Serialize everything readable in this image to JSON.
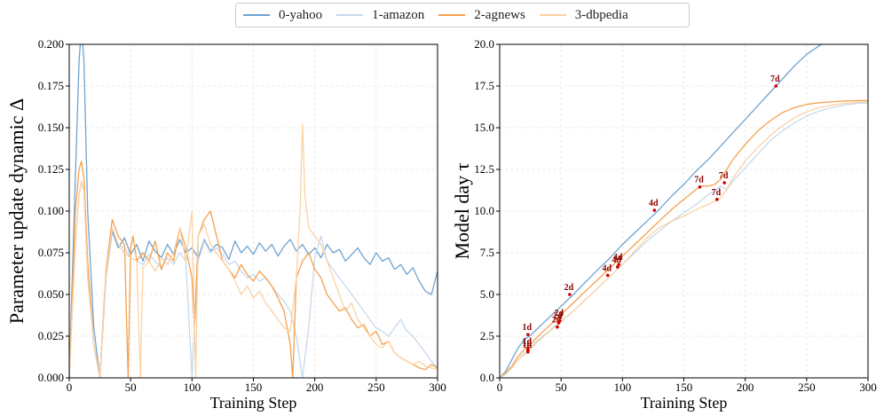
{
  "legend": [
    {
      "name": "0-yahoo",
      "color": "#6fa3cf"
    },
    {
      "name": "1-amazon",
      "color": "#c6d9ec"
    },
    {
      "name": "2-agnews",
      "color": "#f5a04e"
    },
    {
      "name": "3-dbpedia",
      "color": "#fbd2a4"
    }
  ],
  "chart_data": [
    {
      "type": "line",
      "title": "",
      "xlabel": "Training Step",
      "ylabel": "Parameter update dynamic Δ",
      "xlim": [
        0,
        300
      ],
      "ylim": [
        0,
        0.2
      ],
      "xticks": [
        0,
        50,
        100,
        150,
        200,
        250,
        300
      ],
      "xtick_labels": [
        "0",
        "50",
        "100",
        "150",
        "200",
        "250",
        "300"
      ],
      "yticks": [
        0,
        0.025,
        0.05,
        0.075,
        0.1,
        0.125,
        0.15,
        0.175,
        0.2
      ],
      "ytick_labels": [
        "0.000",
        "0.025",
        "0.050",
        "0.075",
        "0.100",
        "0.125",
        "0.150",
        "0.175",
        "0.200"
      ],
      "grid": true,
      "series": [
        {
          "name": "0-yahoo",
          "color": "#6fa3cf",
          "x": [
            0,
            5,
            8,
            10,
            12,
            15,
            20,
            25,
            28,
            30,
            35,
            40,
            45,
            50,
            55,
            60,
            65,
            70,
            75,
            80,
            85,
            90,
            95,
            100,
            105,
            110,
            115,
            120,
            125,
            130,
            135,
            140,
            145,
            150,
            155,
            160,
            165,
            170,
            175,
            180,
            185,
            190,
            195,
            200,
            205,
            210,
            215,
            220,
            225,
            230,
            235,
            240,
            245,
            250,
            255,
            260,
            265,
            270,
            275,
            280,
            285,
            290,
            295,
            300
          ],
          "y": [
            0,
            0.12,
            0.19,
            0.21,
            0.19,
            0.1,
            0.03,
            0,
            0.04,
            0.06,
            0.088,
            0.078,
            0.084,
            0.074,
            0.08,
            0.07,
            0.082,
            0.076,
            0.072,
            0.08,
            0.074,
            0.083,
            0.075,
            0.078,
            0.072,
            0.083,
            0.076,
            0.08,
            0.078,
            0.071,
            0.082,
            0.075,
            0.079,
            0.074,
            0.081,
            0.076,
            0.08,
            0.073,
            0.079,
            0.083,
            0.076,
            0.08,
            0.074,
            0.078,
            0.072,
            0.08,
            0.075,
            0.077,
            0.07,
            0.074,
            0.078,
            0.072,
            0.068,
            0.075,
            0.07,
            0.072,
            0.065,
            0.068,
            0.062,
            0.066,
            0.058,
            0.052,
            0.05,
            0.064
          ]
        },
        {
          "name": "1-amazon",
          "color": "#c6d9ec",
          "x": [
            0,
            5,
            8,
            10,
            12,
            15,
            20,
            25,
            28,
            30,
            35,
            40,
            45,
            50,
            55,
            60,
            65,
            70,
            75,
            80,
            85,
            90,
            95,
            100,
            105,
            110,
            115,
            120,
            125,
            130,
            135,
            140,
            145,
            150,
            155,
            160,
            165,
            170,
            175,
            180,
            185,
            190,
            195,
            200,
            205,
            210,
            215,
            220,
            225,
            230,
            235,
            240,
            245,
            250,
            255,
            260,
            265,
            270,
            275,
            280,
            285,
            290,
            295,
            300
          ],
          "y": [
            0,
            0.08,
            0.11,
            0.118,
            0.112,
            0.06,
            0.02,
            0,
            0.035,
            0.06,
            0.09,
            0.08,
            0.078,
            0.072,
            0.07,
            0.068,
            0.074,
            0.07,
            0.066,
            0.072,
            0.068,
            0.075,
            0.07,
            0,
            0.07,
            0.082,
            0.075,
            0.078,
            0.074,
            0.068,
            0.07,
            0.064,
            0.06,
            0.062,
            0.058,
            0.06,
            0.055,
            0.05,
            0.046,
            0.04,
            0.025,
            0,
            0.03,
            0.072,
            0.085,
            0.07,
            0.065,
            0.06,
            0.055,
            0.05,
            0.045,
            0.04,
            0.035,
            0.03,
            0.028,
            0.025,
            0.03,
            0.035,
            0.028,
            0.025,
            0.02,
            0.015,
            0.01,
            0.006
          ]
        },
        {
          "name": "2-agnews",
          "color": "#f5a04e",
          "x": [
            0,
            5,
            8,
            10,
            12,
            15,
            20,
            25,
            28,
            30,
            35,
            40,
            45,
            48,
            50,
            52,
            55,
            60,
            65,
            70,
            75,
            80,
            85,
            90,
            95,
            100,
            102,
            105,
            110,
            115,
            120,
            125,
            130,
            135,
            140,
            145,
            150,
            155,
            160,
            165,
            170,
            175,
            180,
            182,
            185,
            190,
            195,
            200,
            205,
            210,
            215,
            220,
            225,
            230,
            235,
            240,
            245,
            250,
            255,
            260,
            265,
            270,
            275,
            280,
            285,
            290,
            295,
            300
          ],
          "y": [
            0,
            0.1,
            0.125,
            0.13,
            0.12,
            0.07,
            0.02,
            0,
            0.04,
            0.065,
            0.095,
            0.085,
            0.08,
            0,
            0.078,
            0.085,
            0.07,
            0.075,
            0.07,
            0.082,
            0.065,
            0.075,
            0.07,
            0.09,
            0.078,
            0.06,
            0.03,
            0.085,
            0.095,
            0.1,
            0.085,
            0.07,
            0.065,
            0.06,
            0.068,
            0.062,
            0.058,
            0.064,
            0.06,
            0.055,
            0.048,
            0.04,
            0.02,
            0,
            0.06,
            0.07,
            0.075,
            0.065,
            0.06,
            0.05,
            0.045,
            0.04,
            0.042,
            0.035,
            0.03,
            0.032,
            0.025,
            0.028,
            0.02,
            0.022,
            0.015,
            0.012,
            0.01,
            0.008,
            0.006,
            0.005,
            0.008,
            0.006
          ]
        },
        {
          "name": "3-dbpedia",
          "color": "#fbd2a4",
          "x": [
            0,
            5,
            8,
            10,
            12,
            15,
            20,
            25,
            28,
            30,
            35,
            40,
            45,
            50,
            55,
            58,
            60,
            65,
            70,
            75,
            80,
            85,
            90,
            95,
            100,
            103,
            105,
            110,
            115,
            120,
            125,
            130,
            135,
            140,
            145,
            150,
            155,
            160,
            165,
            170,
            175,
            180,
            185,
            188,
            190,
            192,
            195,
            200,
            205,
            210,
            215,
            220,
            225,
            230,
            235,
            240,
            245,
            250,
            255,
            260,
            265,
            270,
            275,
            280,
            285,
            290,
            295,
            300
          ],
          "y": [
            0,
            0.08,
            0.11,
            0.118,
            0.112,
            0.06,
            0.02,
            0,
            0.04,
            0.062,
            0.09,
            0.08,
            0.075,
            0.072,
            0.07,
            0,
            0.066,
            0.07,
            0.064,
            0.072,
            0.068,
            0.075,
            0.09,
            0.07,
            0.1,
            0,
            0.085,
            0.092,
            0.08,
            0.075,
            0.07,
            0.065,
            0.058,
            0.05,
            0.055,
            0.048,
            0.052,
            0.045,
            0.04,
            0.035,
            0.03,
            0.028,
            0.06,
            0.1,
            0.152,
            0.11,
            0.09,
            0.085,
            0.08,
            0.07,
            0.06,
            0.05,
            0.04,
            0.045,
            0.035,
            0.03,
            0.025,
            0.02,
            0.018,
            0.022,
            0.015,
            0.012,
            0.01,
            0.008,
            0.01,
            0.007,
            0.006,
            0.005
          ]
        }
      ]
    },
    {
      "type": "line",
      "title": "",
      "xlabel": "Training Step",
      "ylabel": "Model day τ",
      "xlim": [
        0,
        300
      ],
      "ylim": [
        0,
        20
      ],
      "xticks": [
        0,
        50,
        100,
        150,
        200,
        250,
        300
      ],
      "xtick_labels": [
        "0",
        "50",
        "100",
        "150",
        "200",
        "250",
        "300"
      ],
      "yticks": [
        0,
        2.5,
        5,
        7.5,
        10,
        12.5,
        15,
        17.5,
        20
      ],
      "ytick_labels": [
        "0.0",
        "2.5",
        "5.0",
        "7.5",
        "10.0",
        "12.5",
        "15.0",
        "17.5",
        "20.0"
      ],
      "grid": true,
      "series": [
        {
          "name": "0-yahoo",
          "color": "#6fa3cf",
          "x": [
            0,
            5,
            10,
            15,
            20,
            25,
            30,
            40,
            50,
            60,
            70,
            80,
            90,
            100,
            110,
            120,
            130,
            140,
            150,
            160,
            170,
            180,
            190,
            200,
            210,
            220,
            230,
            240,
            250,
            262
          ],
          "y": [
            0,
            0.4,
            1.1,
            1.8,
            2.3,
            2.55,
            2.9,
            3.6,
            4.3,
            5.0,
            5.75,
            6.5,
            7.2,
            8.0,
            8.7,
            9.4,
            10.1,
            10.9,
            11.6,
            12.4,
            13.1,
            13.9,
            14.7,
            15.5,
            16.3,
            17.1,
            17.9,
            18.7,
            19.4,
            20.0
          ]
        },
        {
          "name": "1-amazon",
          "color": "#c6d9ec",
          "x": [
            0,
            5,
            10,
            15,
            20,
            25,
            30,
            40,
            50,
            60,
            70,
            80,
            90,
            100,
            110,
            120,
            130,
            140,
            150,
            160,
            170,
            175,
            180,
            185,
            190,
            200,
            210,
            220,
            230,
            240,
            250,
            260,
            270,
            280,
            290,
            300
          ],
          "y": [
            0,
            0.2,
            0.6,
            1.1,
            1.5,
            1.8,
            2.2,
            2.8,
            3.4,
            4.0,
            4.7,
            5.4,
            6.1,
            6.8,
            7.5,
            8.2,
            8.8,
            9.4,
            9.9,
            10.4,
            11.0,
            11.2,
            11.5,
            11.3,
            11.8,
            12.6,
            13.4,
            14.2,
            14.8,
            15.3,
            15.7,
            16.0,
            16.2,
            16.35,
            16.45,
            16.5
          ]
        },
        {
          "name": "2-agnews",
          "color": "#f5a04e",
          "x": [
            0,
            5,
            10,
            15,
            20,
            25,
            30,
            40,
            50,
            60,
            70,
            80,
            90,
            100,
            110,
            120,
            130,
            140,
            150,
            160,
            165,
            170,
            175,
            180,
            185,
            190,
            200,
            210,
            220,
            230,
            240,
            250,
            260,
            270,
            280,
            290,
            300
          ],
          "y": [
            0,
            0.3,
            0.7,
            1.3,
            1.7,
            2.0,
            2.4,
            3.1,
            3.8,
            4.5,
            5.2,
            5.9,
            6.6,
            7.3,
            8.0,
            8.7,
            9.4,
            10.1,
            10.7,
            11.3,
            11.5,
            11.5,
            11.6,
            11.9,
            12.5,
            13.1,
            14.0,
            14.8,
            15.4,
            15.9,
            16.2,
            16.4,
            16.5,
            16.55,
            16.6,
            16.62,
            16.63
          ]
        },
        {
          "name": "3-dbpedia",
          "color": "#fbd2a4",
          "x": [
            0,
            5,
            10,
            15,
            20,
            25,
            30,
            40,
            50,
            60,
            70,
            80,
            90,
            100,
            110,
            120,
            130,
            140,
            150,
            160,
            170,
            180,
            185,
            190,
            200,
            210,
            220,
            230,
            240,
            250,
            260,
            270,
            280,
            290,
            300
          ],
          "y": [
            0,
            0.25,
            0.6,
            1.1,
            1.4,
            1.7,
            2.1,
            2.75,
            3.35,
            4.0,
            4.7,
            5.4,
            6.1,
            6.8,
            7.6,
            8.4,
            9.0,
            9.4,
            9.7,
            10.1,
            10.4,
            10.8,
            11.3,
            12.0,
            13.0,
            13.8,
            14.5,
            15.1,
            15.6,
            15.95,
            16.2,
            16.35,
            16.45,
            16.52,
            16.55
          ]
        }
      ],
      "annotations": [
        {
          "label": "1d",
          "x": 23,
          "y": 1.55
        },
        {
          "label": "1d",
          "x": 23,
          "y": 1.65
        },
        {
          "label": "1d",
          "x": 23,
          "y": 1.75
        },
        {
          "label": "1d",
          "x": 23,
          "y": 2.6
        },
        {
          "label": "2d",
          "x": 47,
          "y": 3.05
        },
        {
          "label": "2d",
          "x": 48,
          "y": 3.3
        },
        {
          "label": "2d",
          "x": 49,
          "y": 3.45
        },
        {
          "label": "2d",
          "x": 57,
          "y": 5.0
        },
        {
          "label": "4d",
          "x": 88,
          "y": 6.15
        },
        {
          "label": "4d",
          "x": 96,
          "y": 6.65
        },
        {
          "label": "4d",
          "x": 97,
          "y": 6.8
        },
        {
          "label": "4d",
          "x": 126,
          "y": 10.05
        },
        {
          "label": "7d",
          "x": 163,
          "y": 11.45
        },
        {
          "label": "7d",
          "x": 177,
          "y": 10.7
        },
        {
          "label": "7d",
          "x": 183,
          "y": 11.7
        },
        {
          "label": "7d",
          "x": 225,
          "y": 17.5
        }
      ],
      "annotation_color": "#cc0000"
    }
  ]
}
